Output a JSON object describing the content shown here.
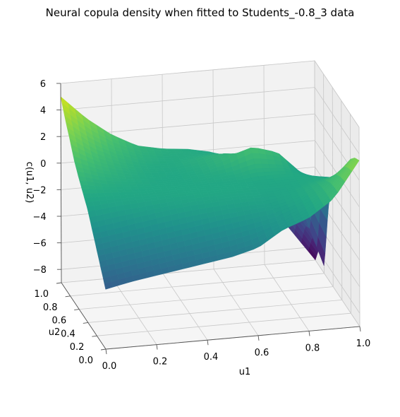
{
  "chart_data": {
    "type": "surface",
    "title": "Neural copula density when fitted to Students_-0.8_3 data",
    "xlabel": "u1",
    "ylabel": "u2",
    "zlabel": "c(u1, u2)",
    "xlim": [
      0.0,
      1.0
    ],
    "ylim": [
      0.0,
      1.0
    ],
    "zlim": [
      -9,
      6
    ],
    "x_ticks": [
      "0.0",
      "0.2",
      "0.4",
      "0.6",
      "0.8",
      "1.0"
    ],
    "y_ticks": [
      "0.0",
      "0.2",
      "0.4",
      "0.6",
      "0.8",
      "1.0"
    ],
    "z_ticks": [
      "6",
      "4",
      "2",
      "0",
      "−2",
      "−4",
      "−6",
      "−8"
    ],
    "colormap": "viridis",
    "grid": true,
    "surface": {
      "x": [
        0.0,
        0.1,
        0.2,
        0.3,
        0.4,
        0.5,
        0.6,
        0.7,
        0.8,
        0.9,
        1.0
      ],
      "y": [
        0.0,
        0.1,
        0.2,
        0.3,
        0.4,
        0.5,
        0.6,
        0.7,
        0.8,
        0.9,
        1.0
      ],
      "z_rows_by_y": [
        [
          -4.5,
          -4.1,
          -3.8,
          -3.5,
          -3.2,
          -2.9,
          -2.4,
          -1.2,
          -0.5,
          0.8,
          3.5
        ],
        [
          -3.5,
          -3.2,
          -2.9,
          -2.6,
          -2.3,
          -2.0,
          -1.6,
          -1.1,
          -0.3,
          0.8,
          3.2
        ],
        [
          -2.5,
          -2.2,
          -1.9,
          -1.6,
          -1.3,
          -1.0,
          -0.8,
          -0.6,
          -0.1,
          0.7,
          2.6
        ],
        [
          -1.5,
          -1.2,
          -0.9,
          -0.6,
          -0.4,
          -0.3,
          -0.2,
          -0.3,
          0.0,
          0.5,
          1.4
        ],
        [
          -0.5,
          -0.3,
          -0.2,
          -0.1,
          0.0,
          0.0,
          0.0,
          -0.1,
          -0.1,
          0.2,
          0.3
        ],
        [
          0.2,
          0.1,
          0.0,
          0.0,
          0.0,
          0.0,
          0.0,
          0.0,
          0.1,
          0.0,
          -0.3
        ],
        [
          0.9,
          0.4,
          0.2,
          0.0,
          0.0,
          0.1,
          0.2,
          0.6,
          0.4,
          -0.4,
          -1.1
        ],
        [
          1.7,
          0.9,
          0.4,
          0.1,
          0.0,
          0.2,
          0.8,
          1.6,
          1.0,
          -0.9,
          -3.5
        ],
        [
          2.8,
          1.5,
          0.7,
          0.2,
          0.1,
          0.4,
          0.7,
          0.5,
          -0.2,
          -3.2,
          -8.5
        ],
        [
          3.8,
          2.3,
          1.2,
          0.5,
          0.2,
          0.2,
          0.2,
          -0.4,
          -2.4,
          -4.5,
          -7.5
        ],
        [
          5.0,
          3.2,
          1.8,
          0.8,
          0.4,
          0.2,
          -0.2,
          -1.2,
          -4.0,
          -6.5,
          -9.0
        ]
      ]
    }
  }
}
